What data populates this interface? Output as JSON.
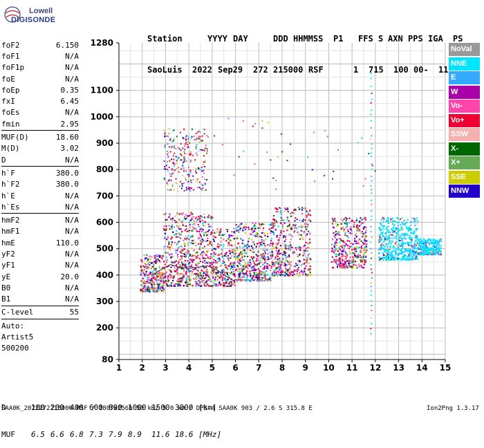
{
  "logo": {
    "line1": "Lowell",
    "line2": "DIGISONDE"
  },
  "header": {
    "labels": [
      "Station",
      "YYYY",
      "DAY",
      "DDD",
      "HHMMSS",
      "P1",
      "FFS",
      "S",
      "AXN",
      "PPS",
      "IGA",
      "PS"
    ],
    "values": [
      "SaoLuis",
      "2022",
      "Sep29",
      "272",
      "215000",
      "RSF",
      "1",
      "715",
      "100",
      "00-",
      "11"
    ]
  },
  "params_groups": [
    [
      {
        "name": "foF2",
        "value": "6.150"
      },
      {
        "name": "foF1",
        "value": "N/A"
      },
      {
        "name": "foF1p",
        "value": "N/A"
      },
      {
        "name": "foE",
        "value": "N/A"
      },
      {
        "name": "foEp",
        "value": "0.35"
      },
      {
        "name": "fxI",
        "value": "6.45"
      },
      {
        "name": "foEs",
        "value": "N/A"
      },
      {
        "name": "fmin",
        "value": "2.95"
      }
    ],
    [
      {
        "name": "MUF(D)",
        "value": "18.60"
      },
      {
        "name": "M(D)",
        "value": "3.02"
      },
      {
        "name": "D",
        "value": "N/A"
      }
    ],
    [
      {
        "name": "h`F",
        "value": "380.0"
      },
      {
        "name": "h`F2",
        "value": "380.0"
      },
      {
        "name": "h`E",
        "value": "N/A"
      },
      {
        "name": "h`Es",
        "value": "N/A"
      }
    ],
    [
      {
        "name": "hmF2",
        "value": "N/A"
      },
      {
        "name": "hmF1",
        "value": "N/A"
      },
      {
        "name": "hmE",
        "value": "110.0"
      },
      {
        "name": "yF2",
        "value": "N/A"
      },
      {
        "name": "yF1",
        "value": "N/A"
      },
      {
        "name": "yE",
        "value": "20.0"
      },
      {
        "name": "B0",
        "value": "N/A"
      },
      {
        "name": "B1",
        "value": "N/A"
      }
    ],
    [
      {
        "name": "C-level",
        "value": "55"
      }
    ],
    [
      {
        "name": "Auto:",
        "value": ""
      },
      {
        "name": "Artist5",
        "value": ""
      },
      {
        "name": "500200",
        "value": ""
      }
    ]
  ],
  "chart_data": {
    "type": "scatter",
    "title": "",
    "xlabel": "",
    "ylabel": "",
    "xlim": [
      1,
      15
    ],
    "ylim": [
      80,
      1280
    ],
    "x_ticks": [
      1,
      2,
      3,
      4,
      5,
      6,
      7,
      8,
      9,
      10,
      11,
      12,
      13,
      14,
      15
    ],
    "y_ticks": [
      80,
      200,
      300,
      400,
      500,
      600,
      700,
      800,
      900,
      1000,
      1100,
      1280
    ],
    "grid": true,
    "legend_position": "right",
    "series": [
      {
        "name": "NoVal",
        "color": "#999999"
      },
      {
        "name": "NNE",
        "color": "#00e5ff"
      },
      {
        "name": "E",
        "color": "#33aaff"
      },
      {
        "name": "W",
        "color": "#aa00aa"
      },
      {
        "name": "Vo-",
        "color": "#ff44aa"
      },
      {
        "name": "Vo+",
        "color": "#ee0033"
      },
      {
        "name": "SSW",
        "color": "#f5b0b0"
      },
      {
        "name": "X-",
        "color": "#006600"
      },
      {
        "name": "X+",
        "color": "#66aa55"
      },
      {
        "name": "SSE",
        "color": "#cccc00"
      },
      {
        "name": "NNW",
        "color": "#2200cc"
      }
    ],
    "trace_color": "#444444"
  },
  "muf_table": {
    "d_label": "D",
    "d_values": [
      "100",
      "200",
      "400",
      "600",
      "800",
      "1000",
      "1500",
      "3000"
    ],
    "d_unit": "[km]",
    "muf_label": "MUF",
    "muf_values": [
      "6.5",
      "6.6",
      "6.8",
      "7.3",
      "7.9",
      "8.9",
      "11.6",
      "18.6"
    ],
    "muf_unit": "[MHz]"
  },
  "footer": "SAA0K_2022272215000.RSF / 280fx256h 50 kHz 5.0 km / DPS-4 SAA0K 903 / 2.6 S 315.8 E",
  "version": "Ion2Png 1.3.17"
}
